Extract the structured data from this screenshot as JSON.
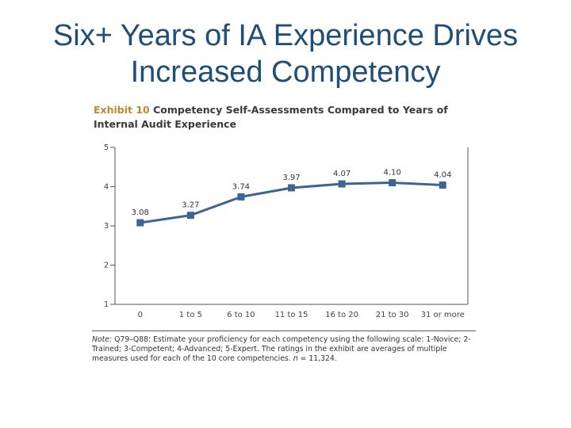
{
  "slide": {
    "title_line1": "Six+ Years of IA Experience Drives",
    "title_line2": "Increased Competency"
  },
  "exhibit": {
    "label": "Exhibit 10",
    "title": "Competency Self-Assessments Compared to Years of Internal Audit Experience"
  },
  "chart_data": {
    "type": "line",
    "categories": [
      "0",
      "1 to 5",
      "6 to 10",
      "11 to 15",
      "16 to 20",
      "21 to 30",
      "31 or more"
    ],
    "values": [
      3.08,
      3.27,
      3.74,
      3.97,
      4.07,
      4.1,
      4.04
    ],
    "data_labels": [
      "3.08",
      "3.27",
      "3.74",
      "3.97",
      "4.07",
      "4.10",
      "4.04"
    ],
    "yticks": [
      "1",
      "2",
      "3",
      "4",
      "5"
    ],
    "ylim": [
      1,
      5
    ],
    "grid": false,
    "line_color": "#3c6594"
  },
  "note": {
    "label": "Note:",
    "text": " Q79–Q88: Estimate your proficiency for each competency using the following scale: 1-Novice; 2-Trained; 3-Competent; 4-Advanced; 5-Expert. The ratings in the exhibit are averages of multiple measures used for each of the 10 core competencies.",
    "n_label": "n",
    "n_value": " = 11,324."
  }
}
